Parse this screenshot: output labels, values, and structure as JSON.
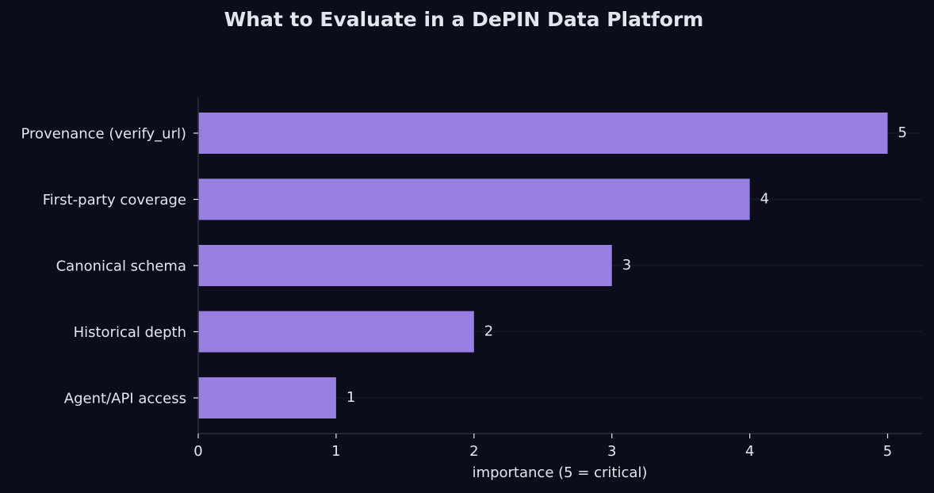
{
  "chart_data": {
    "type": "bar",
    "orientation": "horizontal",
    "title": "What to Evaluate in a DePIN Data Platform",
    "xlabel": "importance (5 = critical)",
    "ylabel": "",
    "categories": [
      "Provenance (verify_url)",
      "First-party coverage",
      "Canonical schema",
      "Historical depth",
      "Agent/API access"
    ],
    "values": [
      5,
      4,
      3,
      2,
      1
    ],
    "value_labels": [
      "5",
      "4",
      "3",
      "2",
      "1"
    ],
    "xlim": [
      0,
      5.25
    ],
    "xticks": [
      0,
      1,
      2,
      3,
      4,
      5
    ],
    "xtick_labels": [
      "0",
      "1",
      "2",
      "3",
      "4",
      "5"
    ],
    "grid": "horizontal, faint",
    "legend": "none",
    "colors": {
      "background": "#0b0e1a",
      "bar": "#9780e2",
      "text": "#e4e6ef",
      "title": "#e4e6ef",
      "axis": "#2b3041",
      "grid": "#161a28"
    }
  }
}
